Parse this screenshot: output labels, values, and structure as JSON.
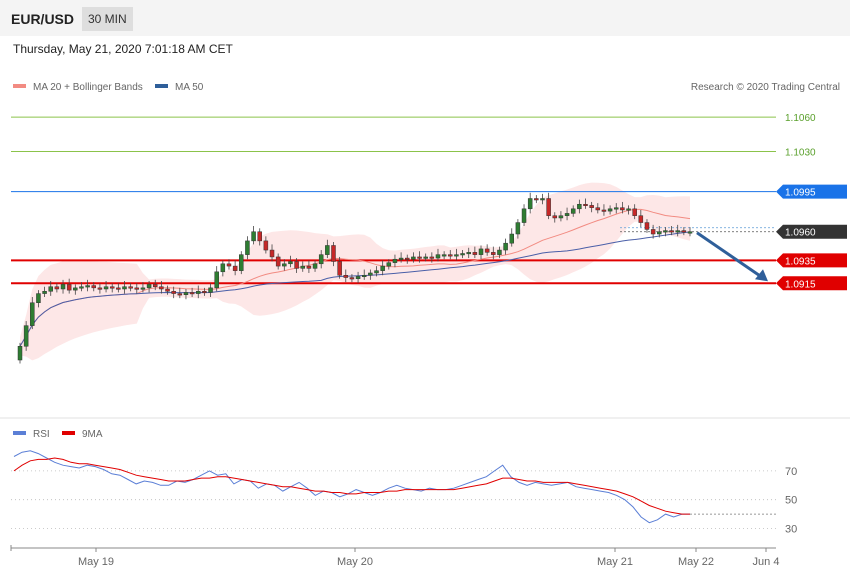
{
  "header": {
    "pair": "EUR/USD",
    "timeframe": "30 MIN",
    "datetime": "Thursday, May 21, 2020 7:01:18 AM CET",
    "copyright": "Research © 2020 Trading Central"
  },
  "colors": {
    "up_candle": "#2e7d32",
    "down_candle": "#c62828",
    "ma20": "#f28b82",
    "bollinger_fill": "#fde3e3",
    "ma50": "#4a5fa8",
    "resistance_green": "#8bc34a",
    "resistance_blue": "#5b9bd5",
    "support_red": "#e00000",
    "current_price_bg": "#333333",
    "forecast_arrow": "#2f5f9a",
    "rsi": "#5b7fd6",
    "rsi_ma": "#e00000"
  },
  "chart_data": [
    {
      "type": "candlestick",
      "legend": [
        {
          "name": "MA 20 + Bollinger Bands",
          "color": "#f28b82"
        },
        {
          "name": "MA 50",
          "color": "#2f5f9a"
        }
      ],
      "ylim": [
        1.08,
        1.1075
      ],
      "levels": [
        {
          "value": 1.106,
          "label": "1.1060",
          "color": "#8bc34a",
          "style": "text"
        },
        {
          "value": 1.103,
          "label": "1.1030",
          "color": "#8bc34a",
          "style": "text"
        },
        {
          "value": 1.0995,
          "label": "1.0995",
          "color": "#1a73e8",
          "style": "tag"
        },
        {
          "value": 1.096,
          "label": "1.0960",
          "color": "#333333",
          "style": "tag",
          "current": true
        },
        {
          "value": 1.0935,
          "label": "1.0935",
          "color": "#e00000",
          "style": "tag"
        },
        {
          "value": 1.0915,
          "label": "1.0915",
          "color": "#e00000",
          "style": "tag"
        }
      ],
      "close": [
        1.086,
        1.0878,
        1.0898,
        1.0906,
        1.0908,
        1.0912,
        1.091,
        1.0914,
        1.0909,
        1.0911,
        1.0912,
        1.0913,
        1.0911,
        1.091,
        1.0912,
        1.0911,
        1.091,
        1.0912,
        1.0911,
        1.091,
        1.0911,
        1.0914,
        1.0912,
        1.091,
        1.0908,
        1.0906,
        1.0905,
        1.0907,
        1.0906,
        1.0908,
        1.0907,
        1.0911,
        1.0925,
        1.0932,
        1.093,
        1.0926,
        1.094,
        1.0952,
        1.096,
        1.0952,
        1.0944,
        1.0938,
        1.093,
        1.0932,
        1.0934,
        1.0928,
        1.093,
        1.0928,
        1.0932,
        1.094,
        1.0948,
        1.0934,
        1.0922,
        1.092,
        1.0919,
        1.0921,
        1.0922,
        1.0924,
        1.0926,
        1.093,
        1.0933,
        1.0936,
        1.0937,
        1.0936,
        1.0938,
        1.0937,
        1.0938,
        1.0937,
        1.094,
        1.094,
        1.0939,
        1.094,
        1.0941,
        1.0942,
        1.094,
        1.0945,
        1.0942,
        1.094,
        1.0944,
        1.095,
        1.0958,
        1.0968,
        1.098,
        1.0989,
        1.0988,
        1.0989,
        1.0974,
        1.0972,
        1.0974,
        1.0976,
        1.098,
        1.0984,
        1.0983,
        1.0981,
        1.0979,
        1.0978,
        1.098,
        1.0981,
        1.0979,
        1.098,
        1.0974,
        1.0968,
        1.0962,
        1.0958,
        1.096,
        1.0961,
        1.096,
        1.0961,
        1.096,
        1.096
      ],
      "ma20_label": "MA 20",
      "ma50_label": "MA 50"
    },
    {
      "type": "line",
      "legend": [
        {
          "name": "RSI",
          "color": "#5b7fd6"
        },
        {
          "name": "9MA",
          "color": "#e00000"
        }
      ],
      "ylim": [
        22,
        88
      ],
      "yticks": [
        70,
        50,
        30
      ],
      "xticks": [
        "May 19",
        "May 20",
        "May 21",
        "May 22",
        "Jun 4"
      ],
      "rsi": [
        80,
        83,
        84,
        82,
        79,
        76,
        74,
        73,
        72,
        74,
        73,
        71,
        68,
        67,
        64,
        61,
        63,
        62,
        60,
        60,
        63,
        62,
        64,
        67,
        70,
        67,
        68,
        61,
        64,
        63,
        58,
        61,
        60,
        56,
        59,
        62,
        58,
        53,
        56,
        55,
        52,
        54,
        57,
        55,
        53,
        55,
        58,
        60,
        58,
        57,
        56,
        58,
        57,
        57,
        58,
        60,
        62,
        64,
        66,
        70,
        74,
        66,
        62,
        60,
        62,
        61,
        60,
        61,
        62,
        59,
        58,
        57,
        56,
        55,
        53,
        50,
        45,
        38,
        34,
        36,
        40,
        38,
        40,
        40
      ],
      "rsi_ma": [
        70,
        74,
        77,
        78,
        78,
        79,
        78,
        76,
        75,
        75,
        74,
        73,
        72,
        71,
        69,
        67,
        66,
        65,
        64,
        63,
        63,
        63,
        64,
        65,
        65,
        66,
        66,
        65,
        64,
        63,
        62,
        61,
        60,
        59,
        59,
        58,
        57,
        56,
        56,
        55,
        55,
        54,
        54,
        55,
        55,
        55,
        56,
        56,
        57,
        57,
        57,
        57,
        57,
        57,
        57,
        58,
        59,
        60,
        61,
        63,
        65,
        65,
        64,
        63,
        63,
        62,
        62,
        62,
        62,
        61,
        60,
        59,
        58,
        57,
        56,
        54,
        52,
        49,
        46,
        44,
        42,
        41,
        40,
        40
      ]
    }
  ]
}
